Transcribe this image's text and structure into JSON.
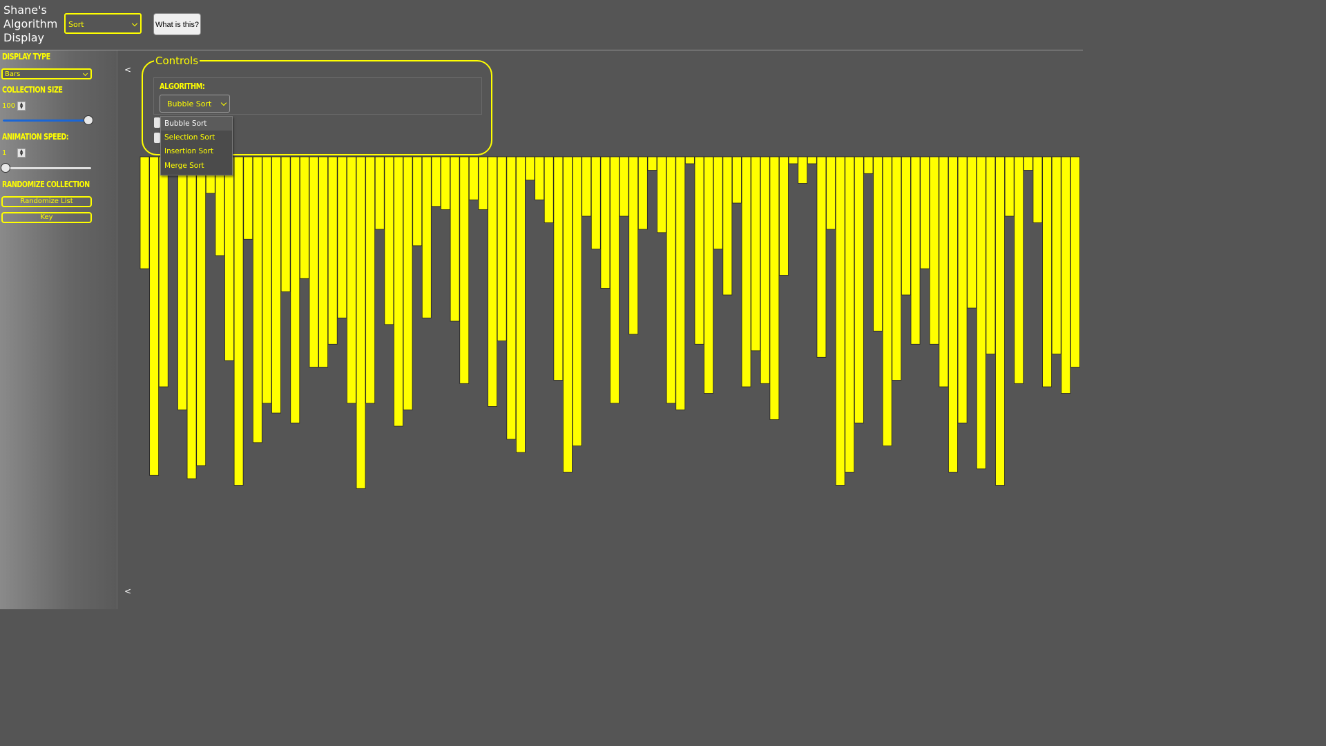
{
  "header": {
    "title_lines": [
      "Shane's",
      "Algorithm",
      "Display"
    ],
    "mode_value": "Sort",
    "help_button": "What is this?"
  },
  "sidebar": {
    "display_type_heading": "DISPLAY TYPE",
    "display_type_value": "Bars",
    "collection_size_heading": "COLLECTION SIZE",
    "collection_size_value": "100",
    "collection_size_slider_fraction": 1.0,
    "animation_speed_heading": "ANIMATION SPEED:",
    "animation_speed_value": "1",
    "animation_speed_slider_fraction": 0.0,
    "randomize_heading": "RANDOMIZE COLLECTION",
    "randomize_button": "Randomize List",
    "key_button": "Key"
  },
  "collapse_top": "<",
  "collapse_bottom": "<",
  "controls": {
    "legend": "Controls",
    "algorithm_heading": "ALGORITHM:",
    "algorithm_value": "Bubble Sort",
    "options": [
      "Bubble Sort",
      "Selection Sort",
      "Insertion Sort",
      "Merge Sort"
    ],
    "selected_option": "Bubble Sort"
  },
  "colors": {
    "accent": "#ffff00",
    "background": "#555555",
    "slider_fill": "#1a66d6"
  },
  "chart_data": {
    "type": "bar",
    "values": [
      32,
      95,
      68,
      0,
      75,
      96,
      92,
      9,
      28,
      60,
      98,
      23,
      85,
      73,
      76,
      39,
      79,
      35,
      62,
      62,
      55,
      47,
      73,
      99,
      73,
      20,
      49,
      80,
      75,
      25,
      47,
      13,
      14,
      48,
      67,
      11,
      14,
      74,
      54,
      84,
      88,
      5,
      11,
      18,
      66,
      94,
      86,
      16,
      26,
      38,
      73,
      16,
      52,
      20,
      2,
      21,
      73,
      75,
      0,
      55,
      70,
      26,
      40,
      12,
      68,
      57,
      67,
      78,
      34,
      0,
      6,
      0,
      59,
      20,
      98,
      94,
      79,
      3,
      51,
      86,
      66,
      40,
      55,
      32,
      55,
      68,
      94,
      79,
      44,
      93,
      58,
      98,
      16,
      67,
      2,
      18,
      68,
      58,
      70,
      62
    ]
  }
}
